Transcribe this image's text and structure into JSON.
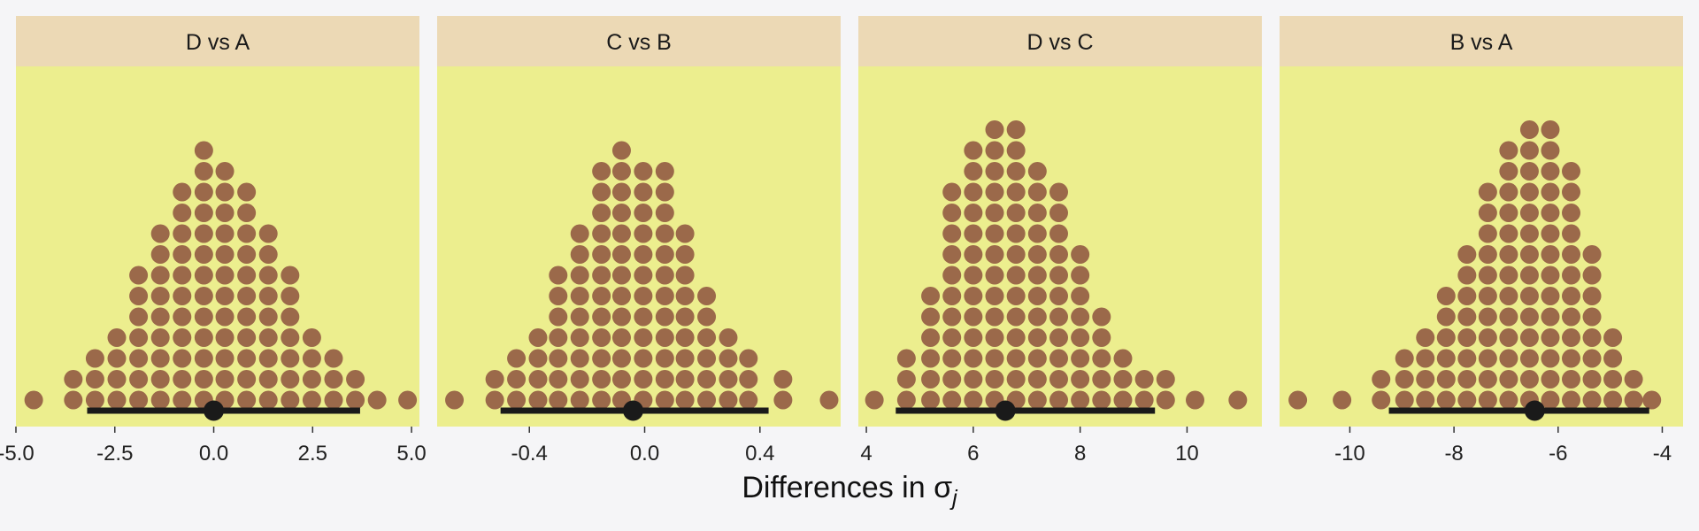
{
  "colors": {
    "background": "#f5f5f7",
    "panel": "#ecee8e",
    "strip": "#ecd9b5",
    "dot": "#9b694a",
    "interval": "#1a1a1a"
  },
  "xlabel": "Differences in σ",
  "xlabel_subscript": "j",
  "chart_data": [
    {
      "type": "dotplot",
      "title": "D vs A",
      "xlim": [
        -5.0,
        5.2
      ],
      "ticks": [
        -5.0,
        -2.5,
        0.0,
        2.5,
        5.0
      ],
      "tick_labels": [
        "-5.0",
        "-2.5",
        "0.0",
        "2.5",
        "5.0"
      ],
      "point_estimate": 0.0,
      "interval": [
        -3.2,
        3.7
      ],
      "bins": [
        {
          "x": -4.55,
          "count": 1
        },
        {
          "x": -3.55,
          "count": 2
        },
        {
          "x": -3.0,
          "count": 3
        },
        {
          "x": -2.45,
          "count": 4
        },
        {
          "x": -1.9,
          "count": 7
        },
        {
          "x": -1.35,
          "count": 9
        },
        {
          "x": -0.8,
          "count": 11
        },
        {
          "x": -0.25,
          "count": 13
        },
        {
          "x": 0.28,
          "count": 12
        },
        {
          "x": 0.83,
          "count": 11
        },
        {
          "x": 1.38,
          "count": 9
        },
        {
          "x": 1.93,
          "count": 7
        },
        {
          "x": 2.48,
          "count": 4
        },
        {
          "x": 3.03,
          "count": 3
        },
        {
          "x": 3.58,
          "count": 2
        },
        {
          "x": 4.13,
          "count": 1
        },
        {
          "x": 4.9,
          "count": 1
        }
      ]
    },
    {
      "type": "dotplot",
      "title": "C vs B",
      "xlim": [
        -0.72,
        0.68
      ],
      "ticks": [
        -0.4,
        0.0,
        0.4
      ],
      "tick_labels": [
        "-0.4",
        "0.0",
        "0.4"
      ],
      "point_estimate": -0.04,
      "interval": [
        -0.5,
        0.43
      ],
      "bins": [
        {
          "x": -0.66,
          "count": 1
        },
        {
          "x": -0.52,
          "count": 2
        },
        {
          "x": -0.445,
          "count": 3
        },
        {
          "x": -0.37,
          "count": 4
        },
        {
          "x": -0.3,
          "count": 7
        },
        {
          "x": -0.225,
          "count": 9
        },
        {
          "x": -0.15,
          "count": 12
        },
        {
          "x": -0.08,
          "count": 13
        },
        {
          "x": -0.005,
          "count": 12
        },
        {
          "x": 0.07,
          "count": 12
        },
        {
          "x": 0.14,
          "count": 9
        },
        {
          "x": 0.215,
          "count": 6
        },
        {
          "x": 0.29,
          "count": 4
        },
        {
          "x": 0.36,
          "count": 3
        },
        {
          "x": 0.48,
          "count": 2
        },
        {
          "x": 0.64,
          "count": 1
        }
      ]
    },
    {
      "type": "dotplot",
      "title": "D vs C",
      "xlim": [
        3.85,
        11.4
      ],
      "ticks": [
        4,
        6,
        8,
        10
      ],
      "tick_labels": [
        "4",
        "6",
        "8",
        "10"
      ],
      "point_estimate": 6.6,
      "interval": [
        4.55,
        9.4
      ],
      "bins": [
        {
          "x": 4.15,
          "count": 1
        },
        {
          "x": 4.75,
          "count": 3
        },
        {
          "x": 5.2,
          "count": 6
        },
        {
          "x": 5.6,
          "count": 11
        },
        {
          "x": 6.0,
          "count": 13
        },
        {
          "x": 6.4,
          "count": 14
        },
        {
          "x": 6.8,
          "count": 14
        },
        {
          "x": 7.2,
          "count": 12
        },
        {
          "x": 7.6,
          "count": 11
        },
        {
          "x": 8.0,
          "count": 8
        },
        {
          "x": 8.4,
          "count": 5
        },
        {
          "x": 8.8,
          "count": 3
        },
        {
          "x": 9.2,
          "count": 2
        },
        {
          "x": 9.6,
          "count": 2
        },
        {
          "x": 10.15,
          "count": 1
        },
        {
          "x": 10.95,
          "count": 1
        }
      ]
    },
    {
      "type": "dotplot",
      "title": "B vs A",
      "xlim": [
        -11.35,
        -3.6
      ],
      "ticks": [
        -10,
        -8,
        -6,
        -4
      ],
      "tick_labels": [
        "-10",
        "-8",
        "-6",
        "-4"
      ],
      "point_estimate": -6.45,
      "interval": [
        -9.25,
        -4.25
      ],
      "bins": [
        {
          "x": -11.0,
          "count": 1
        },
        {
          "x": -10.15,
          "count": 1
        },
        {
          "x": -9.4,
          "count": 2
        },
        {
          "x": -8.95,
          "count": 3
        },
        {
          "x": -8.55,
          "count": 4
        },
        {
          "x": -8.15,
          "count": 6
        },
        {
          "x": -7.75,
          "count": 8
        },
        {
          "x": -7.35,
          "count": 11
        },
        {
          "x": -6.95,
          "count": 13
        },
        {
          "x": -6.55,
          "count": 14
        },
        {
          "x": -6.15,
          "count": 14
        },
        {
          "x": -5.75,
          "count": 12
        },
        {
          "x": -5.35,
          "count": 8
        },
        {
          "x": -4.95,
          "count": 4
        },
        {
          "x": -4.55,
          "count": 2
        },
        {
          "x": -4.2,
          "count": 1
        }
      ]
    }
  ]
}
